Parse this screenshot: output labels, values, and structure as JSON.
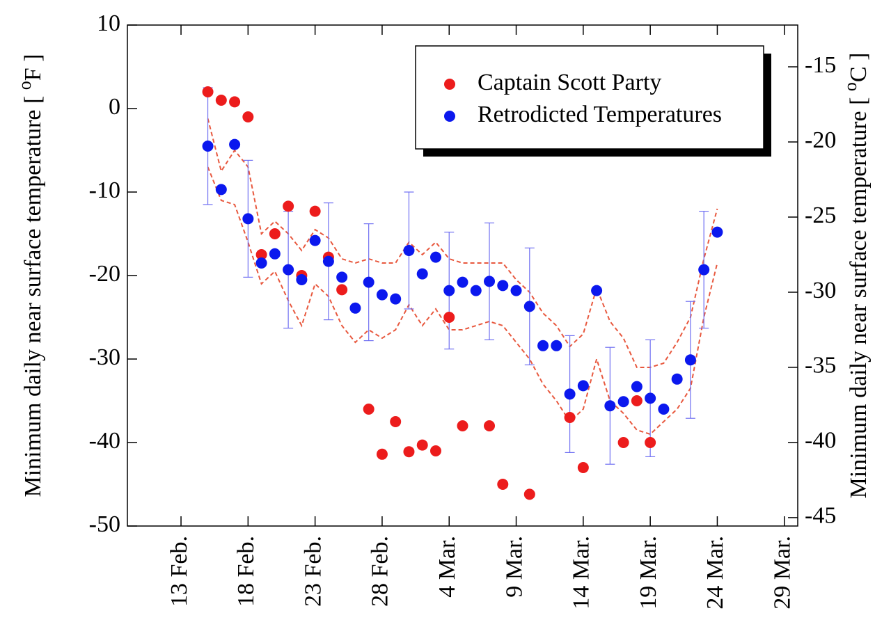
{
  "chart_data": {
    "type": "scatter",
    "y_label": {
      "text": "Minimum daily near surface temperature [ ",
      "sup": "o",
      "unit": "F ]"
    },
    "y2_label": {
      "text": "Minimum daily near surface temperature [ ",
      "sup": "o",
      "unit": "C ]"
    },
    "xlim": [
      40,
      90
    ],
    "xticks": [
      {
        "value": 44,
        "label": "13 Feb."
      },
      {
        "value": 49,
        "label": "18 Feb."
      },
      {
        "value": 54,
        "label": "23 Feb."
      },
      {
        "value": 59,
        "label": "28 Feb."
      },
      {
        "value": 64,
        "label": "4 Mar."
      },
      {
        "value": 69,
        "label": "9 Mar."
      },
      {
        "value": 74,
        "label": "14 Mar."
      },
      {
        "value": 79,
        "label": "19 Mar."
      },
      {
        "value": 84,
        "label": "24 Mar."
      },
      {
        "value": 89,
        "label": "29 Mar."
      }
    ],
    "ylim": [
      -50,
      10
    ],
    "yticks": [
      -50,
      -40,
      -30,
      -20,
      -10,
      0,
      10
    ],
    "y2lim": [
      -45.56,
      -12.22
    ],
    "y2ticks": [
      -45,
      -40,
      -35,
      -30,
      -25,
      -20,
      -15
    ],
    "legend": "upper right",
    "series": [
      {
        "name": "Captain Scott Party",
        "color": "#ec1c1c",
        "x": [
          46,
          47,
          48,
          49,
          50,
          51,
          52,
          53,
          54,
          55,
          56,
          58,
          59,
          60,
          61,
          62,
          63,
          64,
          65,
          67,
          68,
          70,
          73,
          74,
          77,
          78,
          79
        ],
        "values": [
          2,
          1,
          0.8,
          -1,
          -17.5,
          -15,
          -11.7,
          -20,
          -12.3,
          -17.8,
          -21.7,
          -36,
          -41.4,
          -37.5,
          -41.1,
          -40.3,
          -41,
          -25,
          -38,
          -38,
          -45,
          -46.2,
          -37,
          -43,
          -40,
          -35,
          -40
        ]
      },
      {
        "name": "Retrodicted Temperatures",
        "color": "#0b18ee",
        "error_color": "#6f6ff2",
        "x": [
          46,
          47,
          48,
          49,
          50,
          51,
          52,
          53,
          54,
          55,
          56,
          57,
          58,
          59,
          60,
          61,
          62,
          63,
          64,
          65,
          66,
          67,
          68,
          69,
          70,
          71,
          72,
          73,
          74,
          75,
          76,
          77,
          78,
          79,
          80,
          81,
          82,
          83,
          84
        ],
        "values": [
          -4.5,
          -9.7,
          -4.3,
          -13.2,
          -18.5,
          -17.4,
          -19.3,
          -20.5,
          -15.8,
          -18.3,
          -20.2,
          -23.9,
          -20.8,
          -22.3,
          -22.8,
          -17,
          -19.8,
          -17.8,
          -21.8,
          -20.8,
          -21.8,
          -20.7,
          -21.2,
          -21.8,
          -23.7,
          -28.4,
          -28.4,
          -34.2,
          -33.2,
          -21.8,
          -35.6,
          -35.1,
          -33.3,
          -34.7,
          -36,
          -32.4,
          -30.1,
          -19.3,
          -14.8
        ],
        "errors": [
          7,
          null,
          null,
          7,
          null,
          null,
          7,
          null,
          null,
          7,
          null,
          null,
          7,
          null,
          null,
          7,
          null,
          null,
          7,
          null,
          null,
          7,
          null,
          null,
          7,
          null,
          null,
          7,
          null,
          null,
          7,
          null,
          null,
          7,
          null,
          null,
          7,
          7,
          null
        ]
      }
    ],
    "bands": [
      {
        "color": "#e8583e",
        "x": [
          46,
          47,
          48,
          49,
          50,
          51,
          52,
          53,
          54,
          55,
          56,
          57,
          58,
          59,
          60,
          61,
          62,
          63,
          64,
          65,
          66,
          67,
          68,
          69,
          70,
          71,
          72,
          73,
          74,
          75,
          76,
          77,
          78,
          79,
          80,
          81,
          82,
          83,
          84
        ],
        "values": [
          -1.2,
          -7.5,
          -5,
          -7,
          -15,
          -13.5,
          -15,
          -17,
          -14.5,
          -15.5,
          -18,
          -18.5,
          -18,
          -18.5,
          -18.5,
          -16,
          -17.5,
          -16,
          -18,
          -18.5,
          -18.5,
          -18.5,
          -18.5,
          -20.5,
          -22,
          -24.5,
          -26,
          -28.5,
          -27,
          -21.5,
          -25.5,
          -27.5,
          -31,
          -31,
          -30.5,
          -28,
          -25,
          -18,
          -12
        ]
      },
      {
        "color": "#e8583e",
        "x": [
          46,
          47,
          48,
          49,
          50,
          51,
          52,
          53,
          54,
          55,
          56,
          57,
          58,
          59,
          60,
          61,
          62,
          63,
          64,
          65,
          66,
          67,
          68,
          69,
          70,
          71,
          72,
          73,
          74,
          75,
          76,
          77,
          78,
          79,
          80,
          81,
          82,
          83,
          84
        ],
        "values": [
          -7,
          -11,
          -11.5,
          -16,
          -21,
          -19.5,
          -23,
          -26,
          -21,
          -22.5,
          -26,
          -28,
          -26.5,
          -27.5,
          -26.5,
          -23.5,
          -26,
          -24,
          -26.5,
          -26.5,
          -26,
          -25.5,
          -26,
          -28,
          -30,
          -33,
          -35,
          -37.5,
          -36,
          -30,
          -35,
          -36.5,
          -38.5,
          -39,
          -37.5,
          -36,
          -33.5,
          -25,
          -18.5
        ]
      }
    ]
  }
}
